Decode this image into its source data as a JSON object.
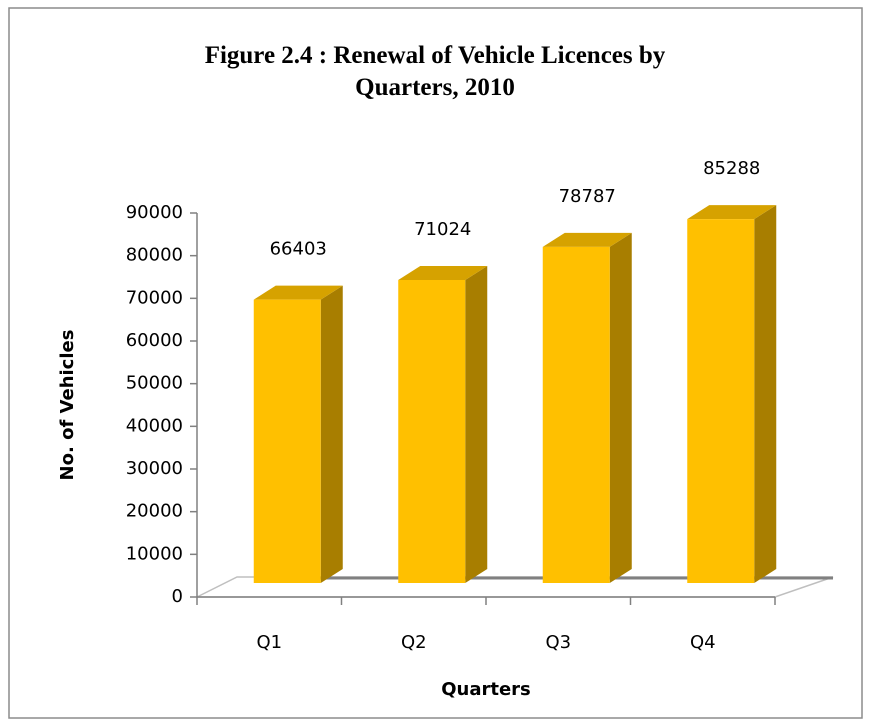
{
  "chart_data": {
    "type": "bar3d",
    "title": "Figure 2.4  : Renewal of Vehicle Licences by Quarters, 2010",
    "x_label": "Quarters",
    "y_label": "No. of Vehicles",
    "categories": [
      "Q1",
      "Q2",
      "Q3",
      "Q4"
    ],
    "values": [
      66403,
      71024,
      78787,
      85288
    ],
    "color": "#FFC000",
    "ylim": [
      0,
      90000
    ],
    "yticks": [
      0,
      10000,
      20000,
      30000,
      40000,
      50000,
      60000,
      70000,
      80000,
      90000
    ],
    "grid": false
  }
}
